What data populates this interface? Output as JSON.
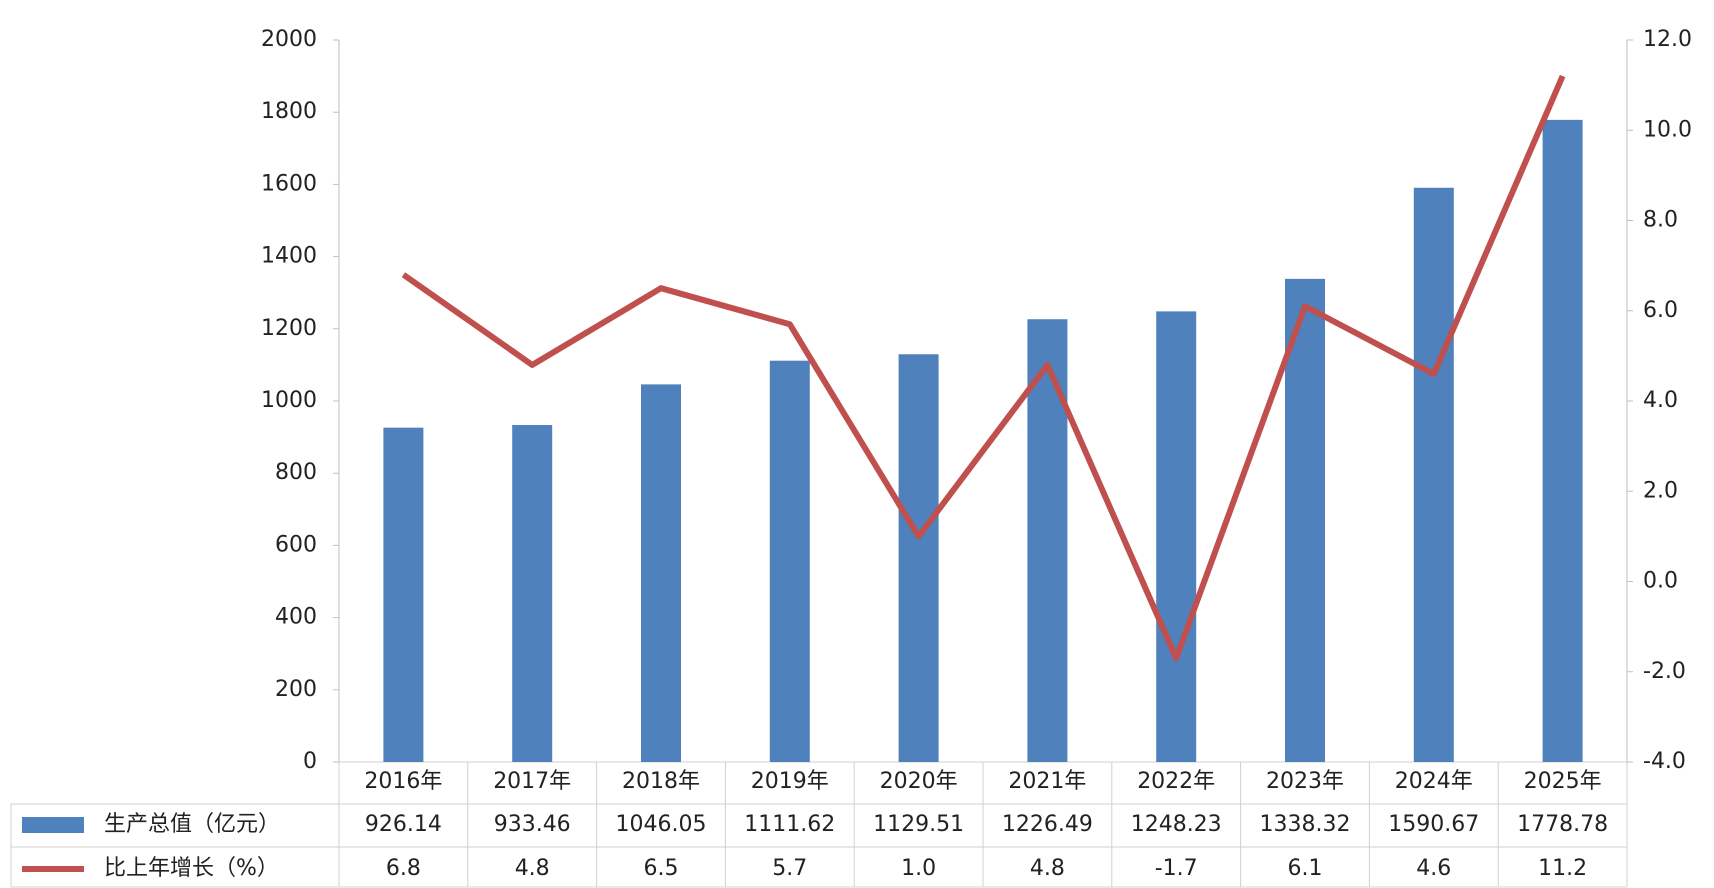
{
  "chart_data": {
    "type": "bar",
    "categories": [
      "2016年",
      "2017年",
      "2018年",
      "2019年",
      "2020年",
      "2021年",
      "2022年",
      "2023年",
      "2024年",
      "2025年"
    ],
    "series": [
      {
        "name": "生产总值（亿元）",
        "type": "bar",
        "color": "#4f81bd",
        "values": [
          926.14,
          933.46,
          1046.05,
          1111.62,
          1129.51,
          1226.49,
          1248.23,
          1338.32,
          1590.67,
          1778.78
        ]
      },
      {
        "name": "比上年增长（%）",
        "type": "line",
        "axis": "y2",
        "color": "#c0504d",
        "values": [
          6.8,
          4.8,
          6.5,
          5.7,
          1.0,
          4.8,
          -1.7,
          6.1,
          4.6,
          11.2
        ],
        "value_labels": [
          "6.8",
          "4.8",
          "6.5",
          "5.7",
          "1.0",
          "4.8",
          "-1.7",
          "6.1",
          "4.6",
          "11.2"
        ]
      }
    ],
    "ylim": [
      0,
      2000
    ],
    "yticks": [
      0,
      200,
      400,
      600,
      800,
      1000,
      1200,
      1400,
      1600,
      1800,
      2000
    ],
    "y2lim": [
      -4,
      12
    ],
    "y2ticks": [
      {
        "value": -4,
        "label": "-4.0"
      },
      {
        "value": -2,
        "label": "-2.0"
      },
      {
        "value": 0,
        "label": "0.0"
      },
      {
        "value": 2,
        "label": "2.0"
      },
      {
        "value": 4,
        "label": "4.0"
      },
      {
        "value": 6,
        "label": "6.0"
      },
      {
        "value": 8,
        "label": "8.0"
      },
      {
        "value": 10,
        "label": "10.0"
      },
      {
        "value": 12,
        "label": "12.0"
      }
    ],
    "grid": false
  }
}
